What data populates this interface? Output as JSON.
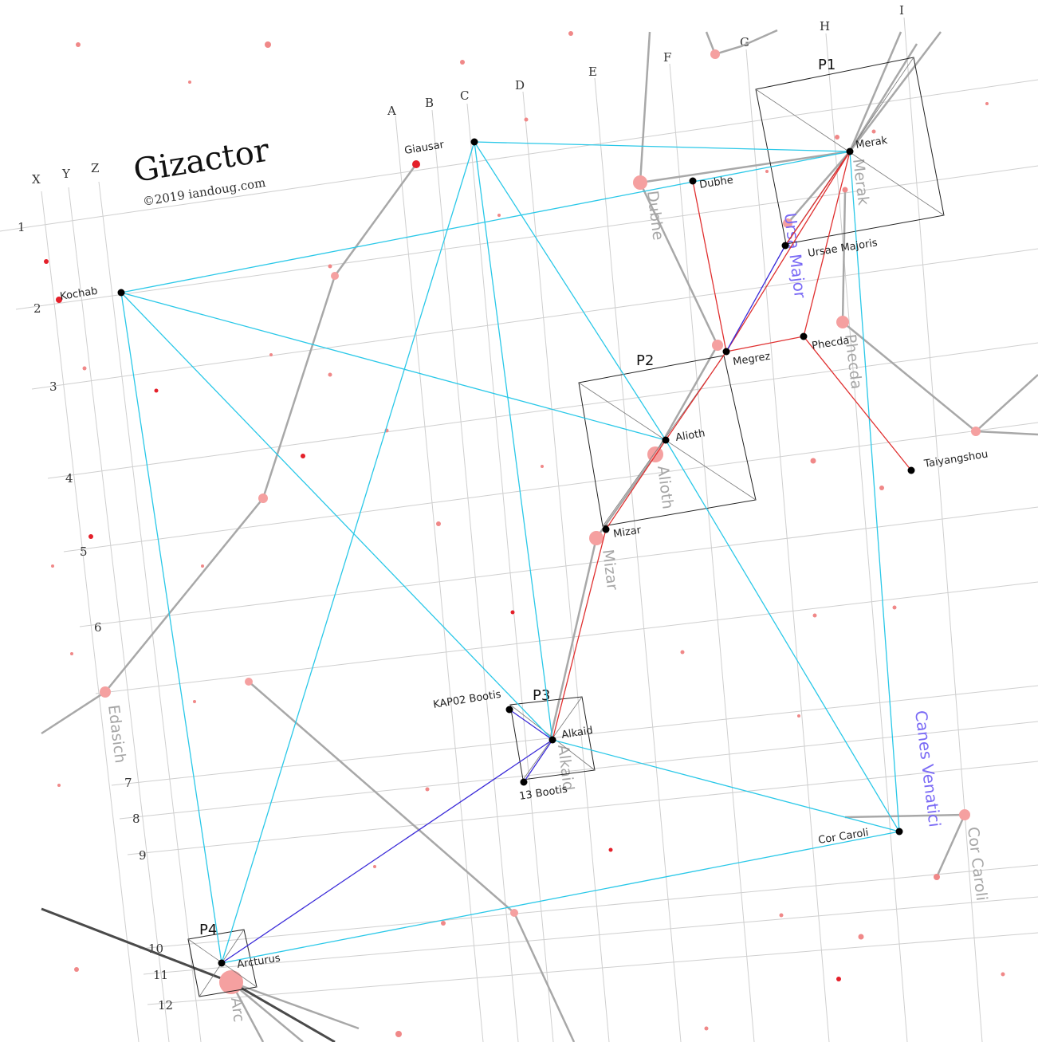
{
  "title": "Gizactor",
  "copyright": "©2019 iandoug.com",
  "grid": {
    "columns": [
      "X",
      "Y",
      "Z",
      "A",
      "B",
      "C",
      "D",
      "E",
      "F",
      "G",
      "H",
      "I"
    ],
    "rows": [
      "1",
      "2",
      "3",
      "4",
      "5",
      "6",
      "7",
      "8",
      "9",
      "10",
      "11",
      "12"
    ]
  },
  "plots": [
    "P1",
    "P2",
    "P3",
    "P4"
  ],
  "stars": {
    "giausar": "Giausar",
    "merak": "Merak",
    "dubhe": "Dubhe",
    "kochab": "Kochab",
    "ursae": "Ursae Majoris",
    "megrez": "Megrez",
    "phecda": "Phecda",
    "alioth": "Alioth",
    "taiyangshou": "Taiyangshou",
    "mizar": "Mizar",
    "kap02": "KAP02 Bootis",
    "alkaid": "Alkaid",
    "bootis13": "13 Bootis",
    "corcaroli": "Cor Caroli",
    "arcturus": "Arcturus"
  },
  "constellations": {
    "ursa_major": "Ursa Major",
    "canes_venatici": "Canes Venatici"
  },
  "background_labels": {
    "merak": "Merak",
    "dubhe": "Dubhe",
    "phecda": "Phecda",
    "alioth": "Alioth",
    "mizar": "Mizar",
    "alkaid": "Alkaid",
    "edasich": "Edasich",
    "corcaroli": "Cor Caroli",
    "arcturus": "Arc"
  },
  "colors": {
    "reference_lines": "#2ac8e8",
    "red_path": "#e03030",
    "blue_path": "#3a2ad8",
    "constellation_label": "#7a6af5"
  }
}
